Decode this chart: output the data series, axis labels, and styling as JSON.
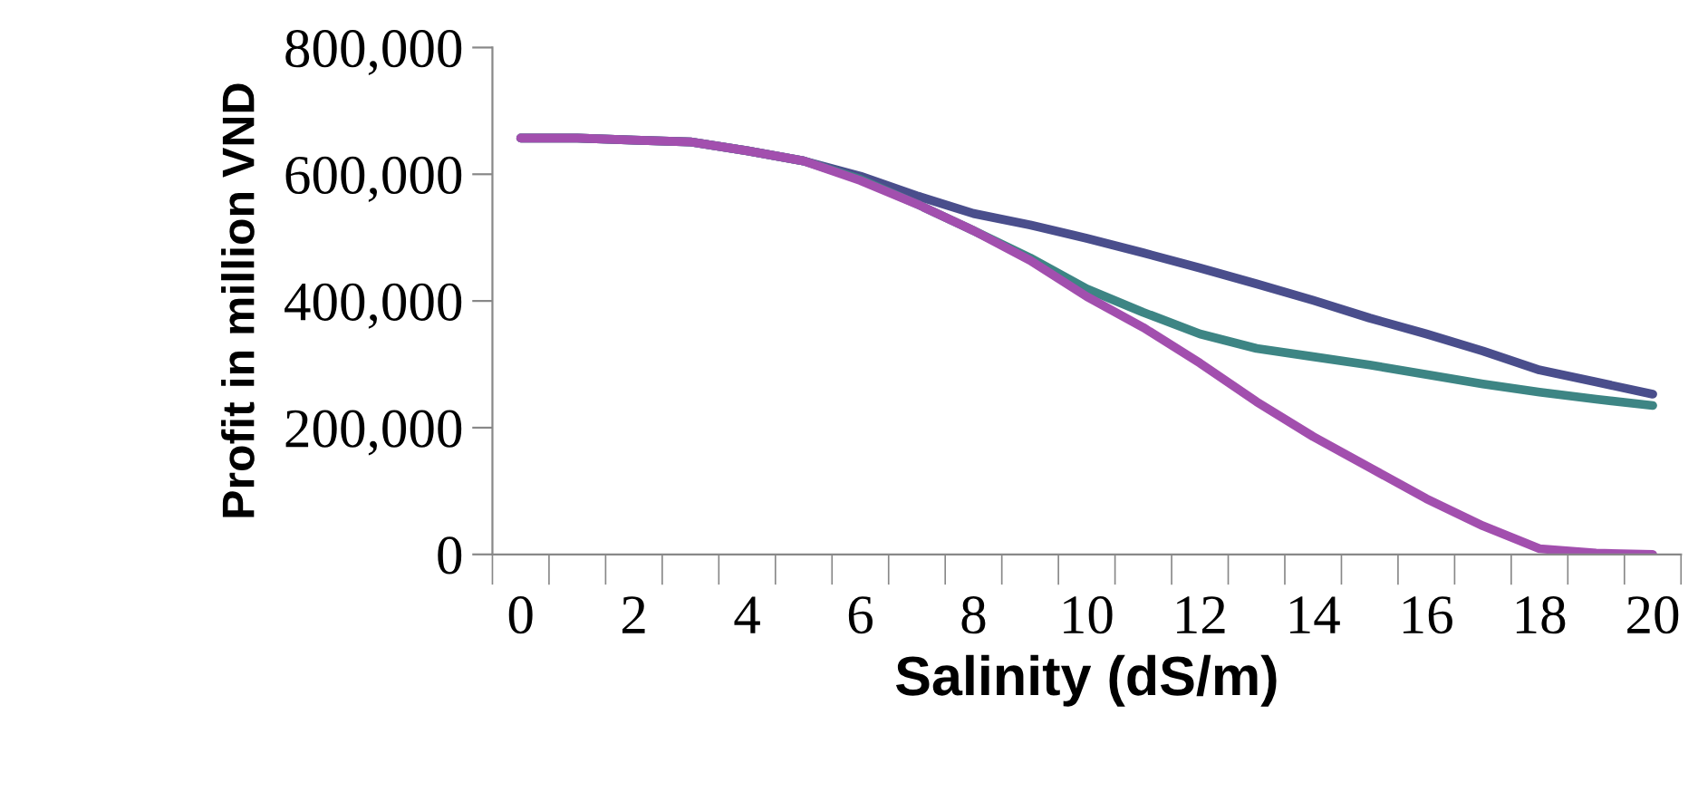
{
  "chart_data": {
    "type": "line",
    "xlabel": "Salinity (dS/m)",
    "ylabel": "Profit in million VND",
    "categories": [
      "0",
      null,
      "2",
      null,
      "4",
      null,
      "6",
      null,
      "8",
      null,
      "10",
      null,
      "12",
      null,
      "14",
      null,
      "16",
      null,
      "18",
      null,
      "20"
    ],
    "series": [
      {
        "color": "#4a4e8c",
        "values": [
          657000,
          657000,
          654000,
          651000,
          637000,
          621000,
          597000,
          566000,
          538000,
          520000,
          499000,
          476000,
          452000,
          427000,
          401000,
          373000,
          348000,
          321000,
          291000,
          272000,
          253000
        ]
      },
      {
        "color": "#3d8584",
        "values": [
          657000,
          657000,
          654000,
          651000,
          637000,
          621000,
          592000,
          553000,
          511000,
          468000,
          419000,
          382000,
          348000,
          325000,
          312000,
          299000,
          284000,
          269000,
          256000,
          245000,
          235000
        ]
      },
      {
        "color": "#a24fae",
        "values": [
          657000,
          657000,
          654000,
          651000,
          637000,
          621000,
          590000,
          553000,
          511000,
          464000,
          407000,
          358000,
          302000,
          241000,
          186000,
          137000,
          88000,
          45000,
          9000,
          2000,
          0
        ]
      }
    ],
    "ylim": [
      0,
      800000
    ],
    "yticks": [
      {
        "value": 0,
        "label": "0"
      },
      {
        "value": 200000,
        "label": "200,000"
      },
      {
        "value": 400000,
        "label": "400,000"
      },
      {
        "value": 600000,
        "label": "600,000"
      },
      {
        "value": 800000,
        "label": "800,000"
      }
    ],
    "marker": "none",
    "line_style": "solid",
    "grid": false,
    "legend": false
  }
}
